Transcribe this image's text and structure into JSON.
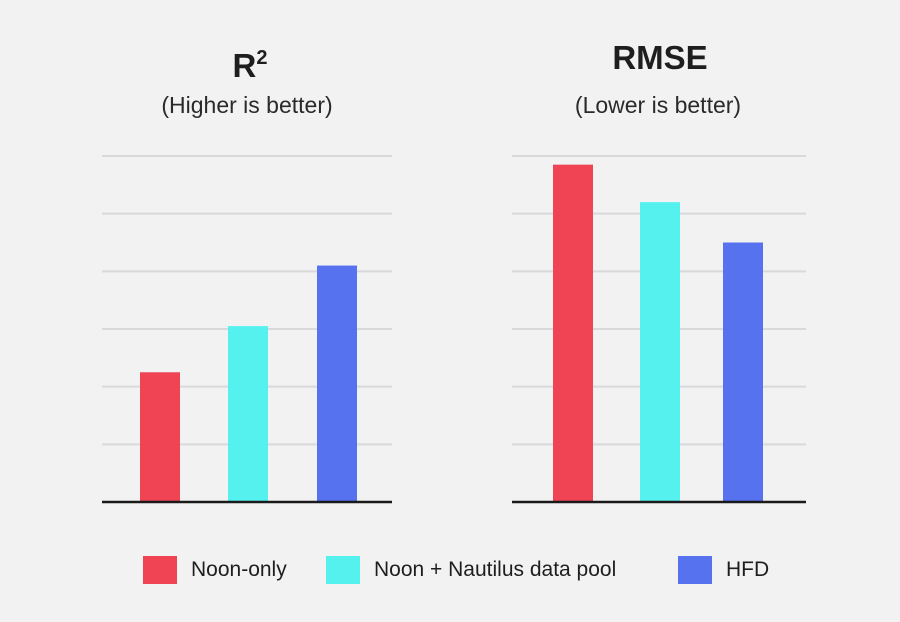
{
  "colors": {
    "noon_only": "#f04455",
    "noon_nautilus": "#55f1ef",
    "hfd": "#5672ef",
    "gridline": "#d9d9dc",
    "axis": "#1a1a1a"
  },
  "legend": [
    {
      "label": "Noon-only",
      "color": "#f04455"
    },
    {
      "label": "Noon + Nautilus data pool",
      "color": "#55f1ef"
    },
    {
      "label": "HFD",
      "color": "#5672ef"
    }
  ],
  "chart_data": [
    {
      "type": "bar",
      "title_main": "R",
      "title_sup": "2",
      "subtitle": "(Higher is better)",
      "categories": [
        "Noon-only",
        "Noon + Nautilus data pool",
        "HFD"
      ],
      "values": [
        2.25,
        3.05,
        4.1
      ],
      "ylim": [
        0,
        6
      ],
      "grid": true,
      "gridlines": 6,
      "tick_labels_shown": false,
      "legend_position": "bottom"
    },
    {
      "type": "bar",
      "title_main": "RMSE",
      "title_sup": "",
      "subtitle": "(Lower is better)",
      "categories": [
        "Noon-only",
        "Noon + Nautilus data pool",
        "HFD"
      ],
      "values": [
        5.85,
        5.2,
        4.5
      ],
      "ylim": [
        0,
        6
      ],
      "grid": true,
      "gridlines": 6,
      "tick_labels_shown": false,
      "legend_position": "bottom"
    }
  ]
}
